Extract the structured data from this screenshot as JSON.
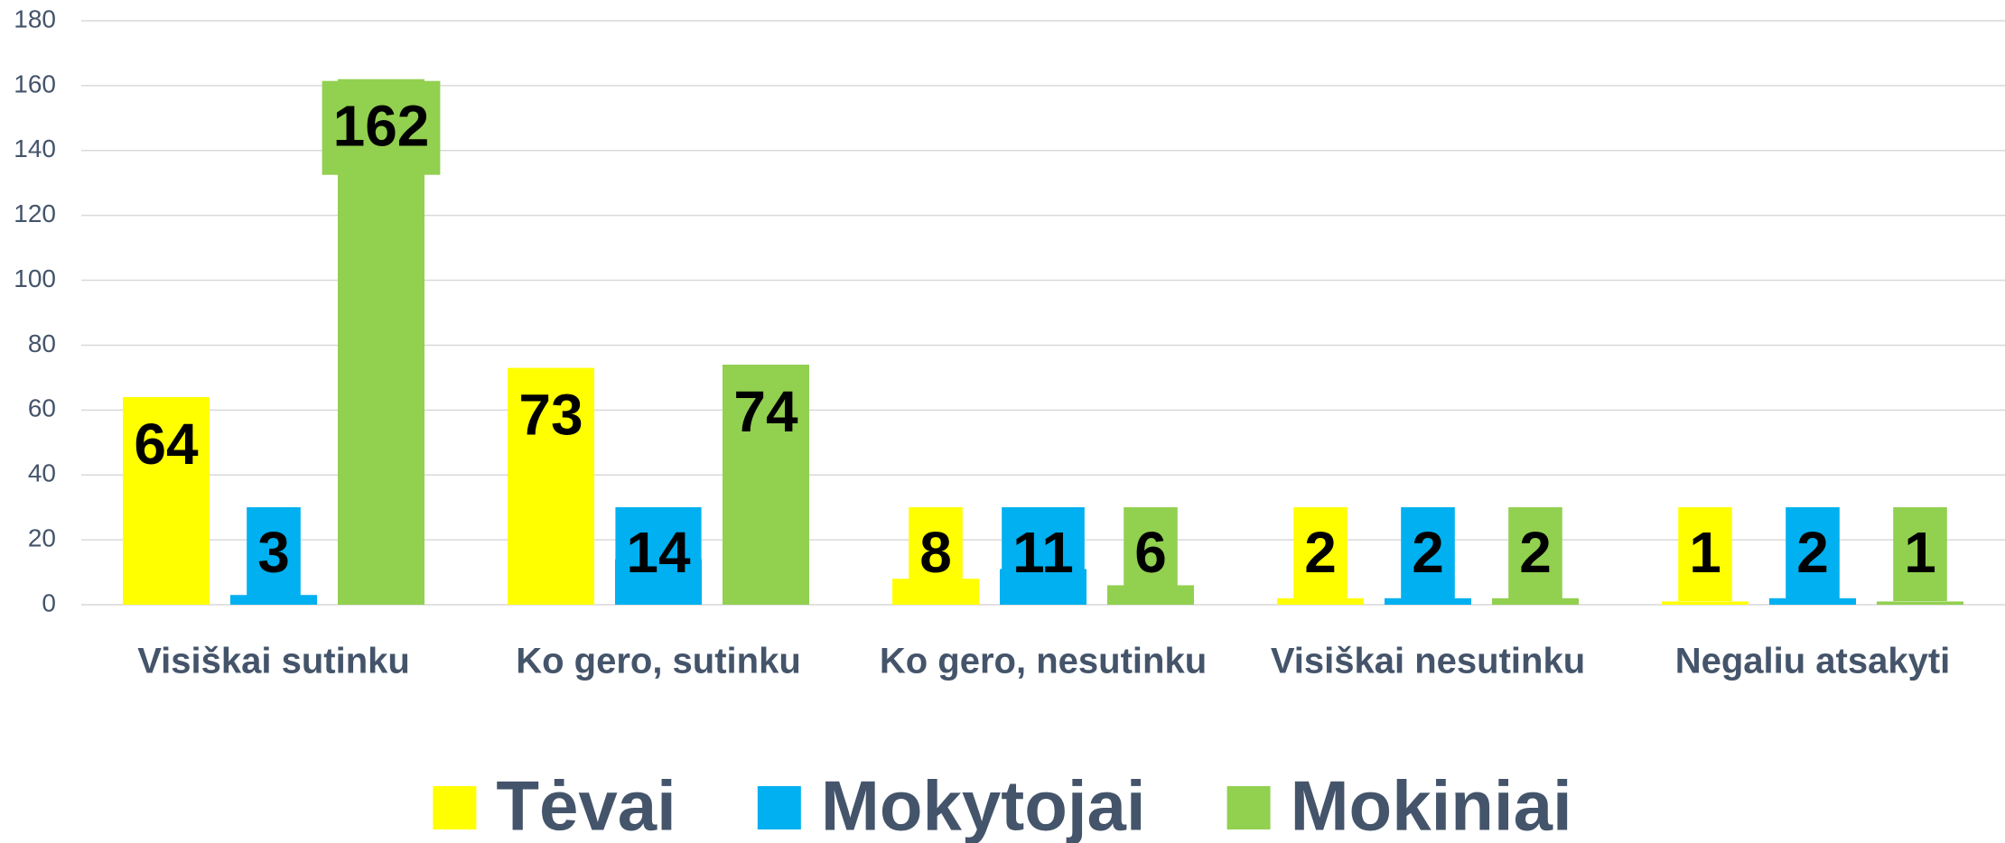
{
  "chart_data": {
    "type": "bar",
    "categories": [
      "Visiškai sutinku",
      "Ko gero, sutinku",
      "Ko gero, nesutinku",
      "Visiškai nesutinku",
      "Negaliu atsakyti"
    ],
    "series": [
      {
        "name": "Tėvai",
        "color": "#ffff00",
        "values": [
          64,
          73,
          8,
          2,
          1
        ]
      },
      {
        "name": "Mokytojai",
        "color": "#00b0f0",
        "values": [
          3,
          14,
          11,
          2,
          2
        ]
      },
      {
        "name": "Mokiniai",
        "color": "#92d050",
        "values": [
          162,
          74,
          6,
          2,
          1
        ]
      }
    ],
    "ylim": [
      0,
      180
    ],
    "yticks": [
      0,
      20,
      40,
      60,
      80,
      100,
      120,
      140,
      160,
      180
    ],
    "grid": true,
    "legend": "bottom"
  }
}
